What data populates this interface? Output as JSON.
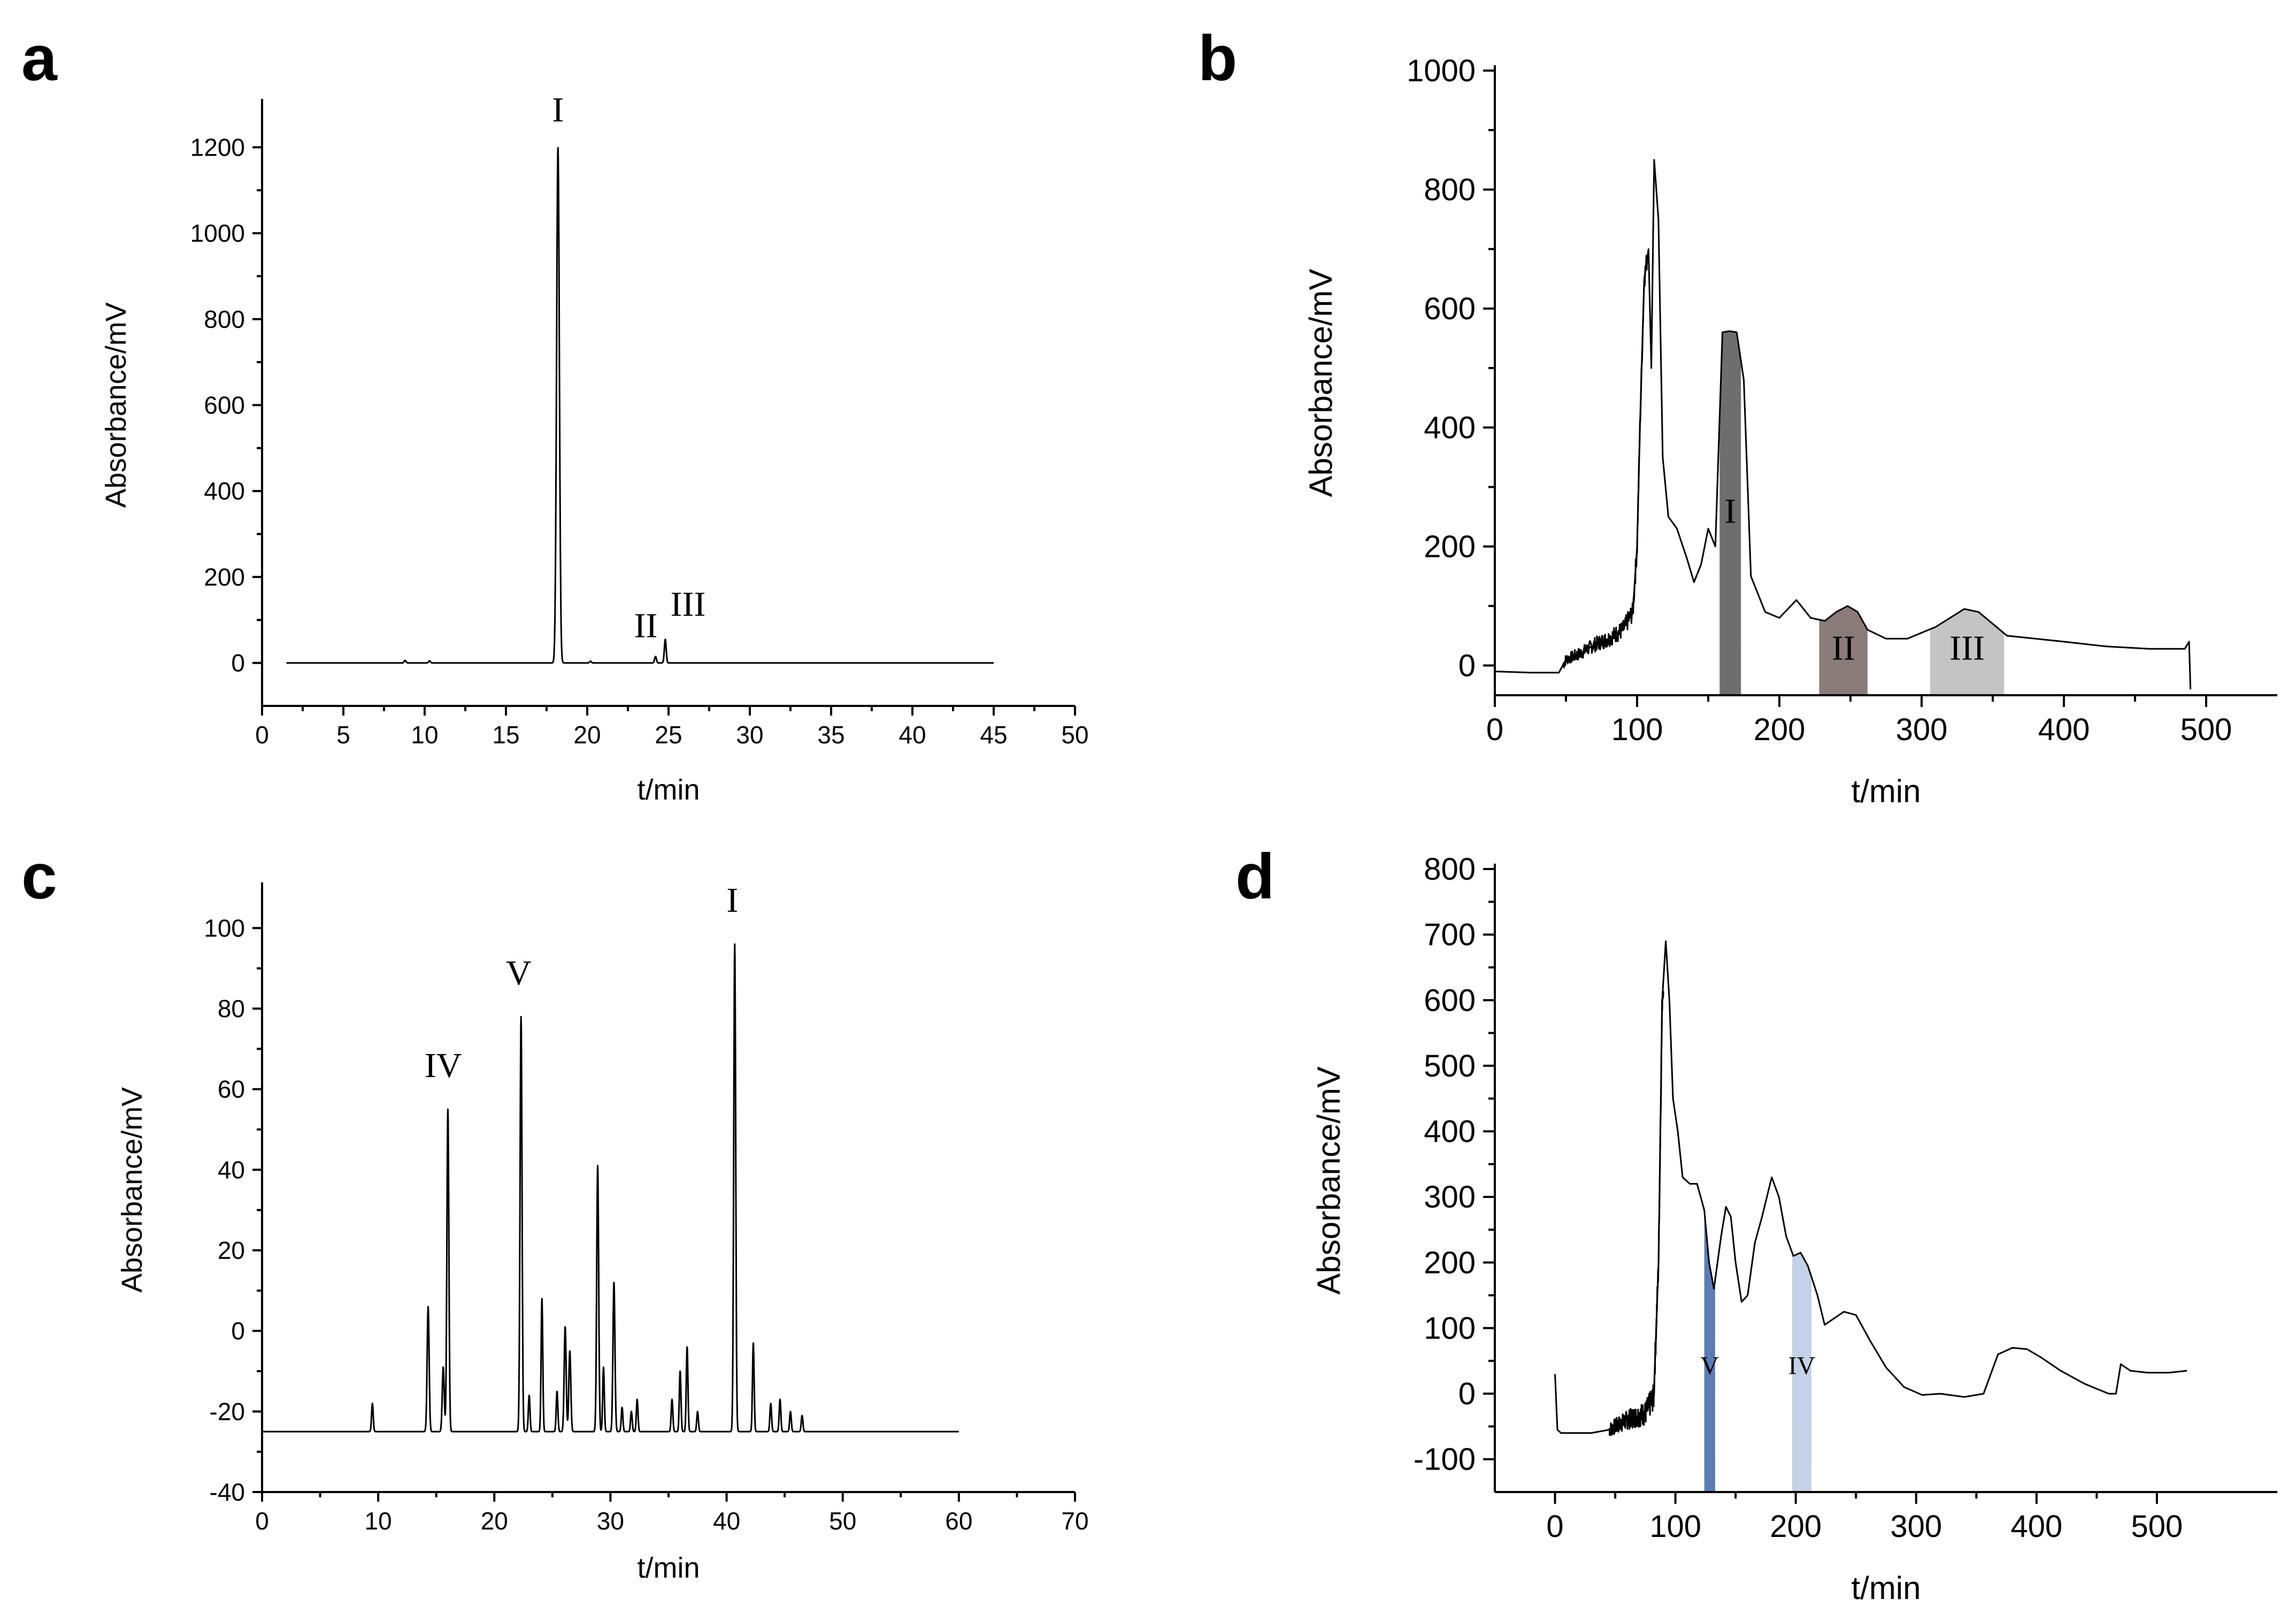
{
  "chart_data": [
    {
      "panel": "a",
      "type": "line",
      "title": "",
      "xlabel": "t/min",
      "ylabel": "Absorbance/mV",
      "xlim": [
        0,
        50
      ],
      "ylim": [
        -100,
        1300
      ],
      "xticks": [
        0,
        5,
        10,
        15,
        20,
        25,
        30,
        35,
        40,
        45,
        50
      ],
      "yticks": [
        0,
        200,
        400,
        600,
        800,
        1000,
        1200
      ],
      "series": [
        {
          "name": "chromatogram",
          "baseline": 0,
          "x_range": [
            1.5,
            45
          ],
          "peaks": [
            {
              "x": 8.8,
              "y": 6,
              "w": 0.08
            },
            {
              "x": 10.3,
              "y": 5,
              "w": 0.08
            },
            {
              "x": 18.2,
              "y": 1200,
              "w": 0.12
            },
            {
              "x": 20.2,
              "y": 4,
              "w": 0.08
            },
            {
              "x": 24.2,
              "y": 15,
              "w": 0.08
            },
            {
              "x": 24.8,
              "y": 55,
              "w": 0.08
            }
          ]
        }
      ],
      "annotations": [
        {
          "text": "I",
          "x": 18.2,
          "y": 1260
        },
        {
          "text": "II",
          "x": 23.6,
          "y": 60
        },
        {
          "text": "III",
          "x": 26.2,
          "y": 110
        }
      ]
    },
    {
      "panel": "b",
      "type": "line",
      "title": "",
      "xlabel": "t/min",
      "ylabel": "Absorbance/mV",
      "xlim": [
        0,
        550
      ],
      "ylim": [
        -50,
        1000
      ],
      "xticks": [
        0,
        100,
        200,
        300,
        400,
        500
      ],
      "yticks": [
        0,
        200,
        400,
        600,
        800,
        1000
      ],
      "series": [
        {
          "name": "chromatogram",
          "points": [
            [
              0,
              -10
            ],
            [
              25,
              -12
            ],
            [
              45,
              -12
            ],
            [
              50,
              10
            ],
            [
              60,
              20
            ],
            [
              70,
              35
            ],
            [
              80,
              45
            ],
            [
              90,
              60
            ],
            [
              97,
              90
            ],
            [
              100,
              200
            ],
            [
              102,
              400
            ],
            [
              105,
              650
            ],
            [
              108,
              700
            ],
            [
              110,
              500
            ],
            [
              112,
              850
            ],
            [
              115,
              750
            ],
            [
              118,
              350
            ],
            [
              122,
              250
            ],
            [
              128,
              230
            ],
            [
              135,
              180
            ],
            [
              140,
              140
            ],
            [
              145,
              170
            ],
            [
              150,
              230
            ],
            [
              155,
              200
            ],
            [
              160,
              560
            ],
            [
              165,
              562
            ],
            [
              170,
              560
            ],
            [
              175,
              480
            ],
            [
              180,
              150
            ],
            [
              190,
              90
            ],
            [
              200,
              80
            ],
            [
              212,
              110
            ],
            [
              222,
              80
            ],
            [
              232,
              75
            ],
            [
              240,
              90
            ],
            [
              248,
              100
            ],
            [
              255,
              90
            ],
            [
              262,
              60
            ],
            [
              275,
              45
            ],
            [
              290,
              45
            ],
            [
              300,
              55
            ],
            [
              310,
              65
            ],
            [
              320,
              80
            ],
            [
              330,
              95
            ],
            [
              340,
              90
            ],
            [
              350,
              70
            ],
            [
              360,
              50
            ],
            [
              380,
              45
            ],
            [
              400,
              40
            ],
            [
              430,
              32
            ],
            [
              460,
              28
            ],
            [
              485,
              28
            ],
            [
              488,
              40
            ],
            [
              489,
              -40
            ]
          ]
        }
      ],
      "fractions": [
        {
          "label": "I",
          "x0": 158,
          "x1": 173,
          "color": "#6e6e6e",
          "label_y": 240
        },
        {
          "label": "II",
          "x0": 228,
          "x1": 262,
          "color": "#8c7b7b",
          "label_y": 10
        },
        {
          "label": "III",
          "x0": 306,
          "x1": 358,
          "color": "#c4c4c4",
          "label_y": 10
        }
      ]
    },
    {
      "panel": "c",
      "type": "line",
      "title": "",
      "xlabel": "t/min",
      "ylabel": "Absorbance/mV",
      "xlim": [
        0,
        70
      ],
      "ylim": [
        -40,
        110
      ],
      "xticks": [
        0,
        10,
        20,
        30,
        40,
        50,
        60,
        70
      ],
      "yticks": [
        -40,
        -20,
        0,
        20,
        40,
        60,
        80,
        100
      ],
      "series": [
        {
          "name": "chromatogram",
          "baseline": -25,
          "x_range": [
            0,
            60
          ],
          "peaks": [
            {
              "x": 9.5,
              "y": 7,
              "w": 0.1
            },
            {
              "x": 14.3,
              "y": 31,
              "w": 0.12
            },
            {
              "x": 15.6,
              "y": 16,
              "w": 0.12
            },
            {
              "x": 16.0,
              "y": 80,
              "w": 0.12
            },
            {
              "x": 22.3,
              "y": 103,
              "w": 0.12
            },
            {
              "x": 23.0,
              "y": 9,
              "w": 0.1
            },
            {
              "x": 24.1,
              "y": 33,
              "w": 0.1
            },
            {
              "x": 25.4,
              "y": 10,
              "w": 0.1
            },
            {
              "x": 26.1,
              "y": 26,
              "w": 0.12
            },
            {
              "x": 26.5,
              "y": 20,
              "w": 0.12
            },
            {
              "x": 28.9,
              "y": 66,
              "w": 0.12
            },
            {
              "x": 29.4,
              "y": 16,
              "w": 0.1
            },
            {
              "x": 30.3,
              "y": 37,
              "w": 0.12
            },
            {
              "x": 31.0,
              "y": 6,
              "w": 0.1
            },
            {
              "x": 31.8,
              "y": 5,
              "w": 0.1
            },
            {
              "x": 32.3,
              "y": 8,
              "w": 0.1
            },
            {
              "x": 35.3,
              "y": 8,
              "w": 0.1
            },
            {
              "x": 36.0,
              "y": 15,
              "w": 0.1
            },
            {
              "x": 36.6,
              "y": 21,
              "w": 0.1
            },
            {
              "x": 37.5,
              "y": 5,
              "w": 0.1
            },
            {
              "x": 40.7,
              "y": 121,
              "w": 0.12
            },
            {
              "x": 42.3,
              "y": 22,
              "w": 0.1
            },
            {
              "x": 43.8,
              "y": 7,
              "w": 0.1
            },
            {
              "x": 44.6,
              "y": 8,
              "w": 0.1
            },
            {
              "x": 45.5,
              "y": 5,
              "w": 0.1
            },
            {
              "x": 46.5,
              "y": 4,
              "w": 0.1
            }
          ]
        }
      ],
      "annotations": [
        {
          "text": "IV",
          "x": 15.6,
          "y": 63
        },
        {
          "text": "V",
          "x": 22.1,
          "y": 86
        },
        {
          "text": "I",
          "x": 40.5,
          "y": 104
        }
      ]
    },
    {
      "panel": "d",
      "type": "line",
      "title": "",
      "xlabel": "t/min",
      "ylabel": "Absorbance/mV",
      "xlim": [
        -50,
        600
      ],
      "ylim": [
        -150,
        800
      ],
      "xticks": [
        0,
        100,
        200,
        300,
        400,
        500
      ],
      "yticks": [
        -100,
        0,
        100,
        200,
        300,
        400,
        500,
        600,
        700,
        800
      ],
      "series": [
        {
          "name": "chromatogram",
          "points": [
            [
              0,
              30
            ],
            [
              2,
              -55
            ],
            [
              5,
              -60
            ],
            [
              30,
              -60
            ],
            [
              45,
              -55
            ],
            [
              60,
              -40
            ],
            [
              75,
              -30
            ],
            [
              82,
              -5
            ],
            [
              86,
              200
            ],
            [
              89,
              600
            ],
            [
              92,
              690
            ],
            [
              95,
              600
            ],
            [
              98,
              450
            ],
            [
              102,
              400
            ],
            [
              106,
              330
            ],
            [
              112,
              320
            ],
            [
              118,
              320
            ],
            [
              124,
              280
            ],
            [
              128,
              200
            ],
            [
              132,
              160
            ],
            [
              138,
              240
            ],
            [
              142,
              285
            ],
            [
              146,
              270
            ],
            [
              150,
              200
            ],
            [
              155,
              140
            ],
            [
              160,
              150
            ],
            [
              166,
              230
            ],
            [
              172,
              270
            ],
            [
              180,
              330
            ],
            [
              186,
              300
            ],
            [
              192,
              240
            ],
            [
              198,
              210
            ],
            [
              204,
              215
            ],
            [
              210,
              195
            ],
            [
              218,
              150
            ],
            [
              224,
              105
            ],
            [
              232,
              115
            ],
            [
              240,
              125
            ],
            [
              250,
              120
            ],
            [
              262,
              80
            ],
            [
              275,
              40
            ],
            [
              290,
              10
            ],
            [
              305,
              -2
            ],
            [
              320,
              0
            ],
            [
              340,
              -5
            ],
            [
              356,
              0
            ],
            [
              368,
              60
            ],
            [
              380,
              70
            ],
            [
              392,
              68
            ],
            [
              404,
              55
            ],
            [
              420,
              35
            ],
            [
              440,
              15
            ],
            [
              460,
              0
            ],
            [
              466,
              0
            ],
            [
              470,
              45
            ],
            [
              478,
              35
            ],
            [
              492,
              32
            ],
            [
              510,
              32
            ],
            [
              525,
              35
            ]
          ]
        }
      ],
      "fractions": [
        {
          "label": "V",
          "x0": 124,
          "x1": 133,
          "color": "#5b7db3",
          "label_y": 30
        },
        {
          "label": "IV",
          "x0": 197,
          "x1": 213,
          "color": "#c3d2e6",
          "label_y": 30
        }
      ]
    }
  ],
  "panels": {
    "a": {
      "letter": "a"
    },
    "b": {
      "letter": "b"
    },
    "c": {
      "letter": "c"
    },
    "d": {
      "letter": "d"
    }
  }
}
